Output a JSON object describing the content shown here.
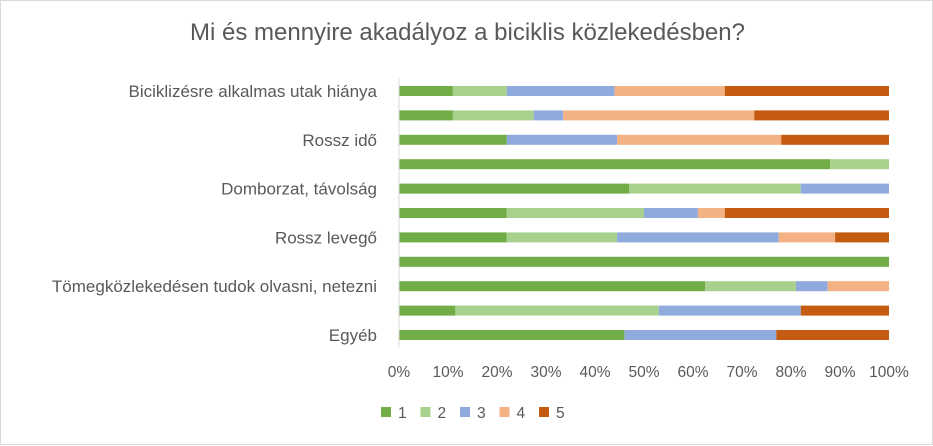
{
  "chart_data": {
    "type": "bar",
    "orientation": "horizontal",
    "stacked": "percent",
    "title": "Mi és mennyire akadályoz a biciklis közlekedésben?",
    "categories": [
      "Biciklizésre alkalmas utak hiánya",
      "",
      "Rossz idő",
      "",
      "Domborzat, távolság",
      "",
      "Rossz levegő",
      "",
      "Tömegközlekedésen tudok olvasni, netezni",
      "",
      "Egyéb"
    ],
    "series": [
      {
        "name": "1",
        "color": "#70ad47",
        "values": [
          11,
          11,
          22,
          88,
          47,
          22,
          22,
          100,
          62.5,
          11.5,
          46
        ]
      },
      {
        "name": "2",
        "color": "#a9d18e",
        "values": [
          11,
          16.5,
          0,
          12,
          35,
          28,
          22.5,
          0,
          18.5,
          41.5,
          0
        ]
      },
      {
        "name": "3",
        "color": "#8faadc",
        "values": [
          22,
          6,
          22.5,
          0,
          18,
          11,
          33,
          0,
          6.5,
          29,
          31
        ]
      },
      {
        "name": "4",
        "color": "#f4b183",
        "values": [
          22.5,
          39,
          33.5,
          0,
          0,
          5.5,
          11.5,
          0,
          12.5,
          0,
          0
        ]
      },
      {
        "name": "5",
        "color": "#c55a11",
        "values": [
          33.5,
          27.5,
          22,
          0,
          0,
          33.5,
          11,
          0,
          0,
          18,
          23
        ]
      }
    ],
    "x_ticks": [
      "0%",
      "10%",
      "20%",
      "30%",
      "40%",
      "50%",
      "60%",
      "70%",
      "80%",
      "90%",
      "100%"
    ],
    "xlim": [
      0,
      100
    ],
    "grid": false,
    "legend_position": "bottom"
  }
}
